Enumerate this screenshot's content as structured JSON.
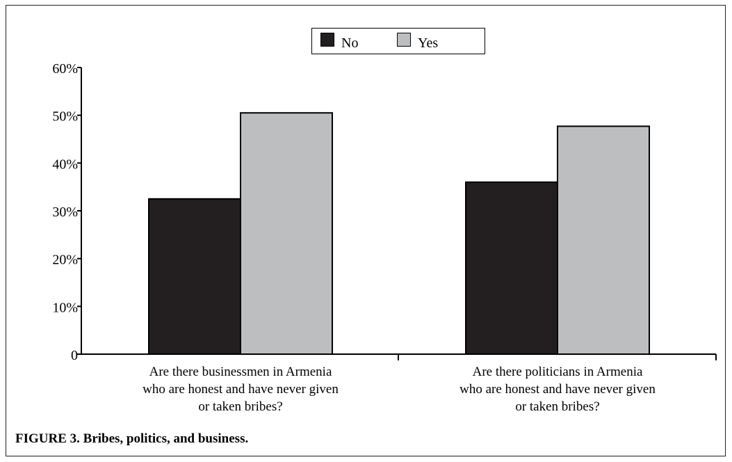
{
  "chart_data": {
    "type": "bar",
    "title": "",
    "xlabel": "",
    "ylabel": "",
    "categories": [
      [
        "Are there businessmen in Armenia",
        "who are honest and have never given",
        "or taken bribes?"
      ],
      [
        "Are there politicians in Armenia",
        "who are honest and have never given",
        "or taken bribes?"
      ]
    ],
    "series": [
      {
        "name": "No",
        "values": [
          32.5,
          36
        ],
        "color": "#231f20"
      },
      {
        "name": "Yes",
        "values": [
          50.5,
          47.7
        ],
        "color": "#bcbec0"
      }
    ],
    "ylim": [
      0,
      60
    ],
    "yticks": [
      0,
      10,
      20,
      30,
      40,
      50,
      60
    ],
    "ytick_labels": [
      "0",
      "10%",
      "20%",
      "30%",
      "40%",
      "50%",
      "60%"
    ],
    "legend_position": "top-center",
    "grid": false
  },
  "caption": "FIGURE 3. Bribes, politics, and business."
}
